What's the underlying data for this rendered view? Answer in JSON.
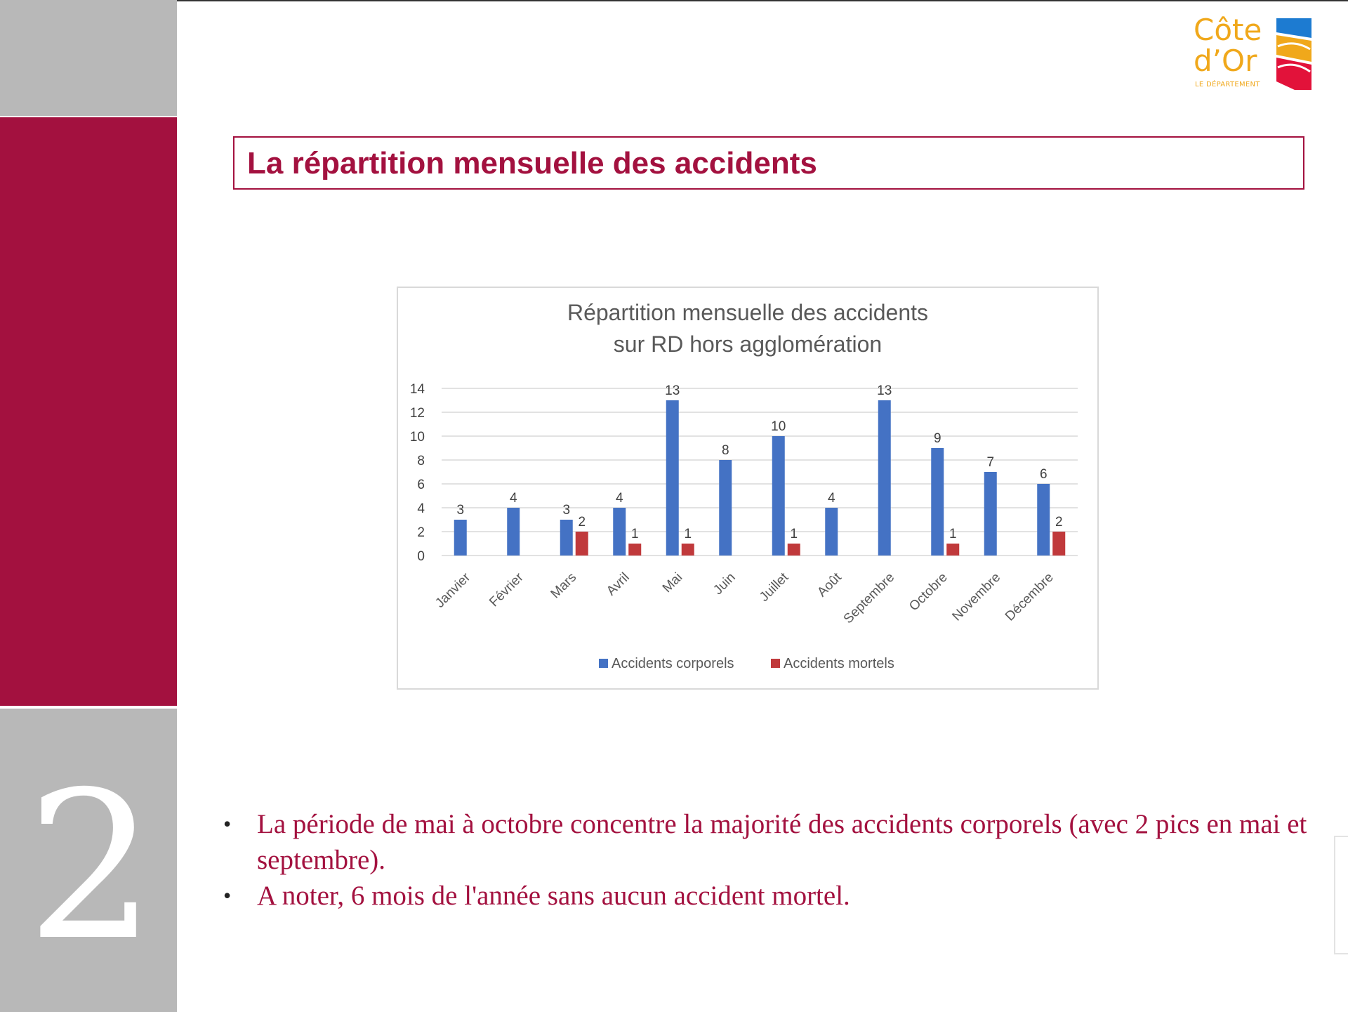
{
  "slide": {
    "number": "2",
    "title": "La répartition mensuelle des accidents",
    "bullets": [
      "La période de mai à octobre concentre la majorité des accidents corporels (avec 2 pics en mai et septembre).",
      "A noter, 6 mois de l'année sans aucun accident mortel."
    ]
  },
  "logo": {
    "line1": "Côte",
    "line2": "d’Or",
    "subtitle": "LE DÉPARTEMENT"
  },
  "colors": {
    "accent": "#a3113f",
    "gray": "#b8b8b8",
    "series_corporels": "#4472c4",
    "series_mortels": "#c0393b",
    "logo_yellow": "#f0a81b",
    "logo_blue": "#1d7bd1",
    "logo_red": "#e2123a"
  },
  "chart_data": {
    "type": "bar",
    "title_lines": [
      "Répartition mensuelle des accidents",
      "sur RD hors agglomération"
    ],
    "categories": [
      "Janvier",
      "Février",
      "Mars",
      "Avril",
      "Mai",
      "Juin",
      "Juillet",
      "Août",
      "Septembre",
      "Octobre",
      "Novembre",
      "Décembre"
    ],
    "series": [
      {
        "name": "Accidents corporels",
        "values": [
          3,
          4,
          3,
          4,
          13,
          8,
          10,
          4,
          13,
          9,
          7,
          6
        ]
      },
      {
        "name": "Accidents mortels",
        "values": [
          0,
          0,
          2,
          1,
          1,
          0,
          1,
          0,
          0,
          1,
          0,
          2
        ]
      }
    ],
    "ylim": [
      0,
      14
    ],
    "yticks": [
      "0",
      "2",
      "4",
      "6",
      "8",
      "10",
      "12",
      "14"
    ],
    "grid": true,
    "legend": "bottom"
  }
}
